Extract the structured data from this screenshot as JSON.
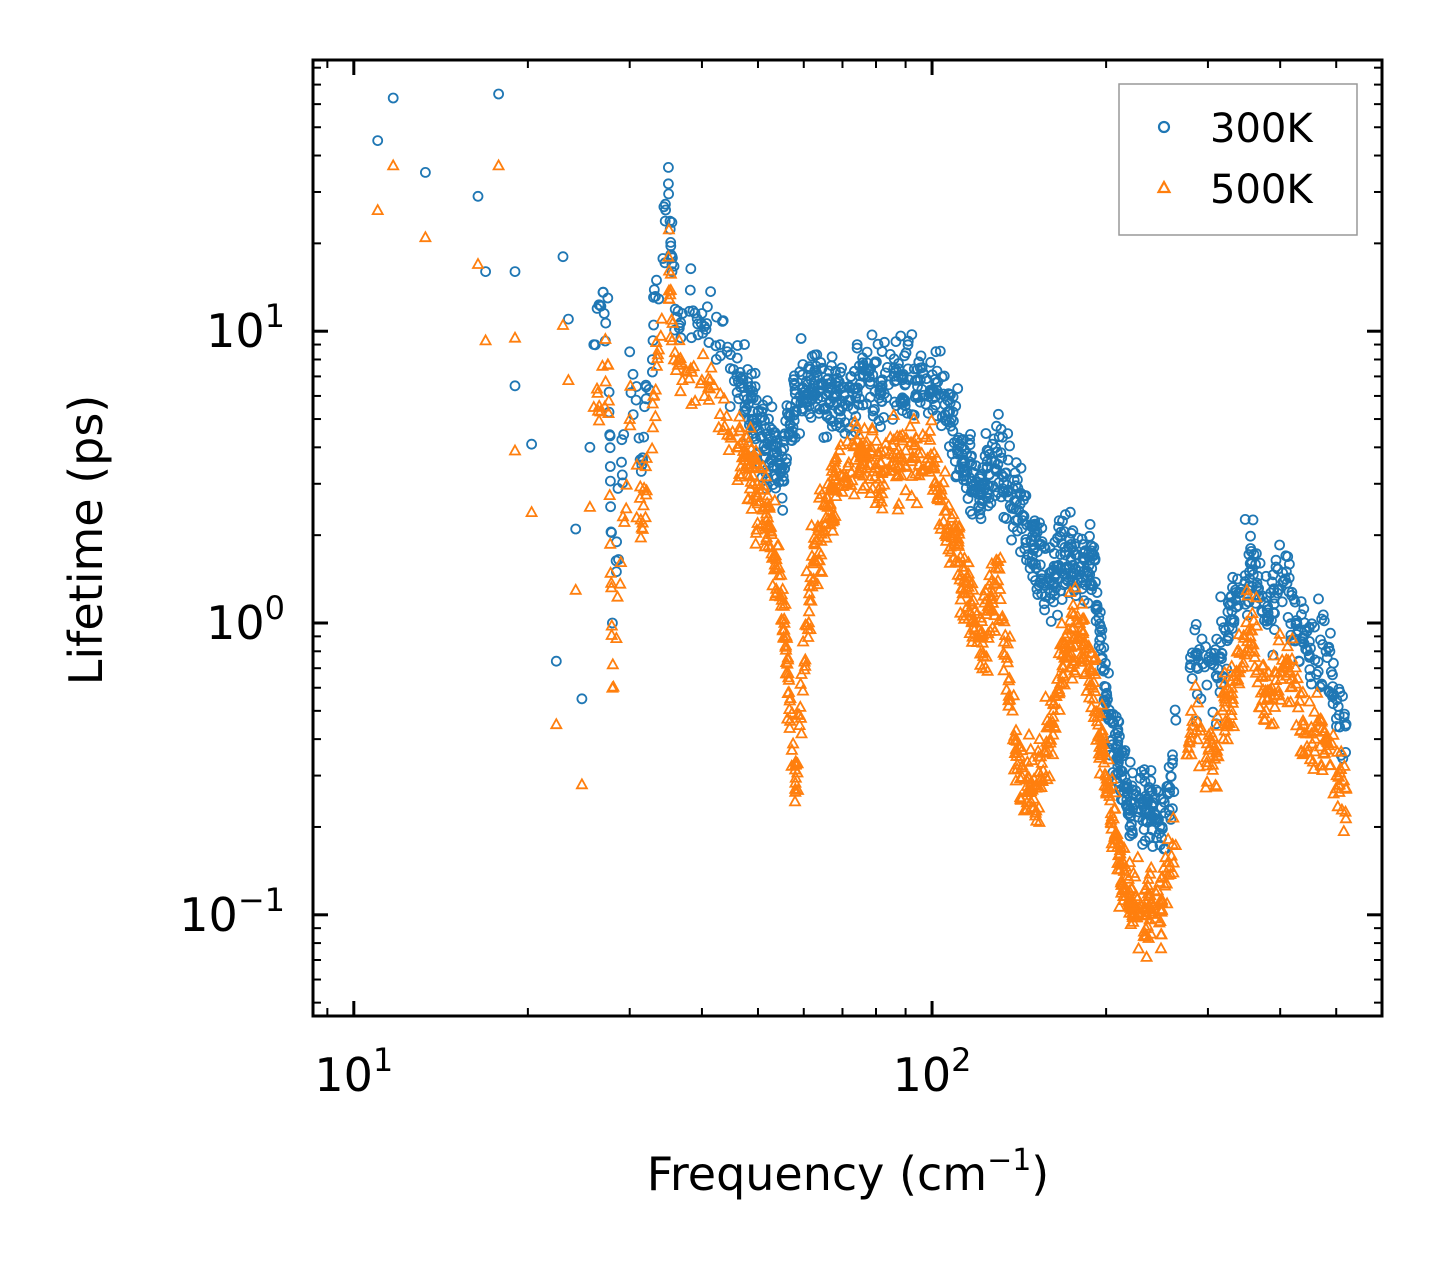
{
  "chart_data": {
    "type": "scatter",
    "xscale": "log",
    "yscale": "log",
    "xlabel": "Frequency (cm",
    "xlabel_sup": "−1",
    "xlabel_end": ")",
    "ylabel": "Lifetime (ps)",
    "xlim": [
      8.5,
      600
    ],
    "ylim": [
      0.045,
      85
    ],
    "xticks": [
      {
        "value": 10,
        "base": "10",
        "exp": "1"
      },
      {
        "value": 100,
        "base": "10",
        "exp": "2"
      }
    ],
    "yticks": [
      {
        "value": 0.1,
        "base": "10",
        "exp": "−1"
      },
      {
        "value": 1,
        "base": "10",
        "exp": "0"
      },
      {
        "value": 10,
        "base": "10",
        "exp": "1"
      }
    ],
    "legend_position": "top-right",
    "series": [
      {
        "name": "300K",
        "marker": "circle",
        "color": "#1f77b4",
        "anchors": [
          [
            11.0,
            45
          ],
          [
            11.7,
            63
          ],
          [
            13.3,
            35
          ],
          [
            16.4,
            29
          ],
          [
            16.9,
            16
          ],
          [
            17.8,
            65
          ],
          [
            19.0,
            16
          ],
          [
            19.0,
            6.5
          ],
          [
            20.3,
            4.1
          ],
          [
            22.4,
            0.74
          ],
          [
            23.0,
            18
          ],
          [
            23.5,
            11
          ],
          [
            24.2,
            2.1
          ],
          [
            24.8,
            0.55
          ],
          [
            25.6,
            4.0
          ],
          [
            26.0,
            9.0
          ],
          [
            27.5,
            13
          ],
          [
            28.0,
            1.0
          ],
          [
            30.0,
            8.5
          ],
          [
            31.6,
            3.6
          ],
          [
            33.0,
            10.5
          ],
          [
            35.0,
            32
          ],
          [
            35.5,
            16
          ],
          [
            37.0,
            11.5
          ],
          [
            40.0,
            11.5
          ],
          [
            43.0,
            9.0
          ],
          [
            46.0,
            7.0
          ],
          [
            49.0,
            5.3
          ],
          [
            52.0,
            4.1
          ],
          [
            55.0,
            3.4
          ],
          [
            58.0,
            6.1
          ],
          [
            62.0,
            6.2
          ],
          [
            66.0,
            6.6
          ],
          [
            70.0,
            5.5
          ],
          [
            76.0,
            7.0
          ],
          [
            82.0,
            6.5
          ],
          [
            90.0,
            6.6
          ],
          [
            100.0,
            6.3
          ],
          [
            108.0,
            5.0
          ],
          [
            115.0,
            3.3
          ],
          [
            122.0,
            3.0
          ],
          [
            130.0,
            3.5
          ],
          [
            140.0,
            2.6
          ],
          [
            150.0,
            1.8
          ],
          [
            160.0,
            1.4
          ],
          [
            170.0,
            1.75
          ],
          [
            180.0,
            1.5
          ],
          [
            190.0,
            1.7
          ],
          [
            200.0,
            0.53
          ],
          [
            210.0,
            0.36
          ],
          [
            220.0,
            0.23
          ],
          [
            235.0,
            0.25
          ],
          [
            250.0,
            0.2
          ],
          [
            280.0,
            0.72
          ],
          [
            310.0,
            0.66
          ],
          [
            330.0,
            1.1
          ],
          [
            355.0,
            1.6
          ],
          [
            380.0,
            1.05
          ],
          [
            410.0,
            1.5
          ],
          [
            440.0,
            0.85
          ],
          [
            480.0,
            0.8
          ],
          [
            520.0,
            0.45
          ]
        ]
      },
      {
        "name": "500K",
        "marker": "triangle",
        "color": "#ff7f0e",
        "anchors": [
          [
            11.0,
            26
          ],
          [
            11.7,
            37
          ],
          [
            13.3,
            21
          ],
          [
            16.4,
            17
          ],
          [
            16.9,
            9.3
          ],
          [
            17.8,
            37
          ],
          [
            19.0,
            9.5
          ],
          [
            19.0,
            3.9
          ],
          [
            20.3,
            2.4
          ],
          [
            22.4,
            0.45
          ],
          [
            23.0,
            10.5
          ],
          [
            23.5,
            6.8
          ],
          [
            24.2,
            1.3
          ],
          [
            24.8,
            0.28
          ],
          [
            25.6,
            2.5
          ],
          [
            26.0,
            5.5
          ],
          [
            27.5,
            7.7
          ],
          [
            28.0,
            0.6
          ],
          [
            30.0,
            5.0
          ],
          [
            31.6,
            2.1
          ],
          [
            33.0,
            6.0
          ],
          [
            35.0,
            18
          ],
          [
            35.5,
            9.3
          ],
          [
            37.0,
            6.8
          ],
          [
            40.0,
            6.8
          ],
          [
            43.0,
            5.2
          ],
          [
            46.0,
            4.0
          ],
          [
            49.0,
            3.0
          ],
          [
            52.0,
            2.3
          ],
          [
            55.0,
            1.2
          ],
          [
            58.0,
            0.27
          ],
          [
            62.0,
            1.7
          ],
          [
            66.0,
            2.5
          ],
          [
            70.0,
            3.2
          ],
          [
            76.0,
            3.8
          ],
          [
            82.0,
            3.3
          ],
          [
            90.0,
            3.9
          ],
          [
            100.0,
            3.4
          ],
          [
            108.0,
            2.0
          ],
          [
            115.0,
            1.3
          ],
          [
            122.0,
            0.9
          ],
          [
            130.0,
            1.4
          ],
          [
            140.0,
            0.35
          ],
          [
            150.0,
            0.25
          ],
          [
            160.0,
            0.4
          ],
          [
            170.0,
            0.85
          ],
          [
            180.0,
            1.0
          ],
          [
            190.0,
            0.6
          ],
          [
            200.0,
            0.3
          ],
          [
            210.0,
            0.16
          ],
          [
            220.0,
            0.11
          ],
          [
            235.0,
            0.1
          ],
          [
            250.0,
            0.11
          ],
          [
            280.0,
            0.42
          ],
          [
            310.0,
            0.36
          ],
          [
            330.0,
            0.6
          ],
          [
            355.0,
            0.9
          ],
          [
            380.0,
            0.55
          ],
          [
            410.0,
            0.75
          ],
          [
            440.0,
            0.42
          ],
          [
            480.0,
            0.4
          ],
          [
            520.0,
            0.27
          ]
        ]
      }
    ]
  }
}
